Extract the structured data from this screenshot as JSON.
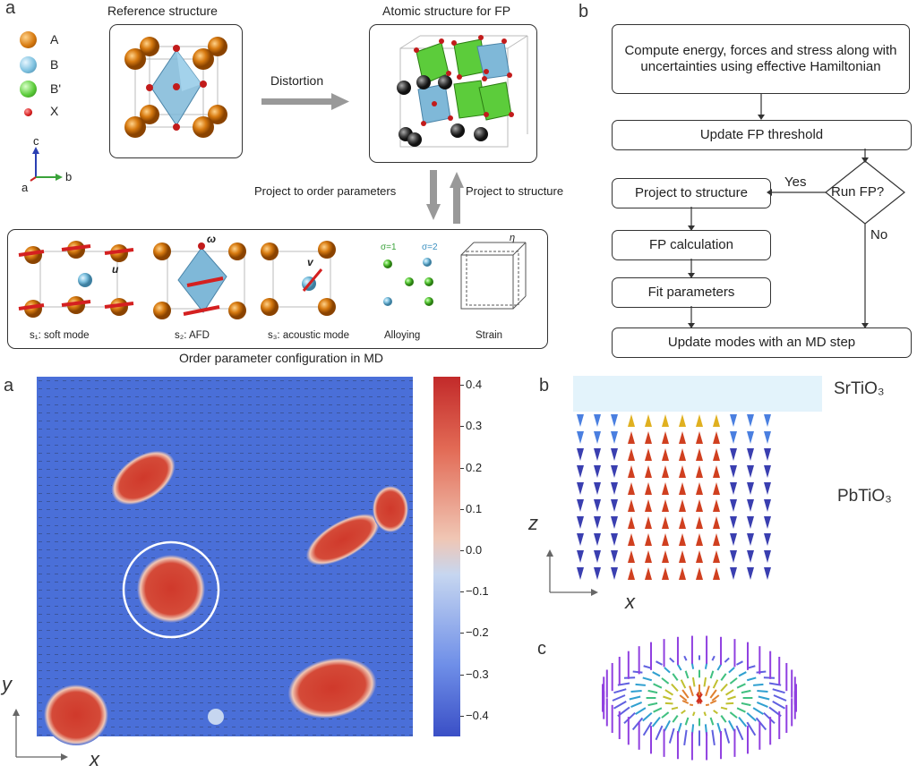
{
  "top": {
    "panel_a_letter": "a",
    "panel_b_letter": "b",
    "legend": [
      {
        "key": "A",
        "color": "#d77a10"
      },
      {
        "key": "B",
        "color": "#7fc2e0"
      },
      {
        "key": "B'",
        "color": "#5ccc3b"
      },
      {
        "key": "X",
        "color": "#d41b1b"
      }
    ],
    "axes": {
      "c": "c",
      "a": "a",
      "b": "b"
    },
    "reference_title": "Reference structure",
    "distortion_label": "Distortion",
    "fp_title": "Atomic structure for FP",
    "project_to_order": "Project to order parameters",
    "project_to_structure": "Project to structure",
    "modes": [
      {
        "label": "s₁: soft mode",
        "vector": "u"
      },
      {
        "label": "s₂: AFD",
        "vector": "ω"
      },
      {
        "label": "s₃: acoustic mode",
        "vector": "v"
      },
      {
        "label": "Alloying",
        "vector": ""
      },
      {
        "label": "Strain",
        "vector": "η"
      }
    ],
    "sigma1": "σ=1",
    "sigma2": "σ=2",
    "caption": "Order parameter configuration in MD",
    "flowchart": {
      "step1": "Compute energy, forces and stress along with uncertainties using effective Hamiltonian",
      "step2": "Update FP threshold",
      "decision": "Run FP?",
      "yes": "Yes",
      "no": "No",
      "step3": "Project to structure",
      "step4": "FP calculation",
      "step5": "Fit parameters",
      "step6": "Update modes with an MD step"
    }
  },
  "bottom": {
    "panel_a_letter": "a",
    "panel_b_letter": "b",
    "panel_c_letter": "c",
    "axis_x": "x",
    "axis_y": "y",
    "axis_z": "z",
    "srtio3_label": "SrTiO₃",
    "pbtio3_label": "PbTiO₃",
    "colorbar": {
      "ticks": [
        "0.4",
        "0.3",
        "0.2",
        "0.1",
        "0.0",
        "−0.1",
        "−0.2",
        "−0.3",
        "−0.4"
      ],
      "min": -0.45,
      "max": 0.42,
      "colors": [
        "#3a4fc6",
        "#6f8fe8",
        "#c6d6f0",
        "#f0c6b4",
        "#e26a55",
        "#c22a2a"
      ]
    },
    "map_background": "#4a6fd8",
    "skyrmion_color": "#d33a2c",
    "circle_color": "#ffffff"
  }
}
